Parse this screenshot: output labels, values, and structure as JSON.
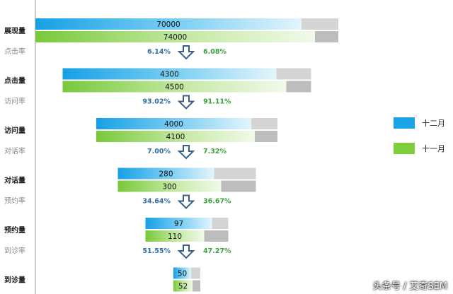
{
  "chart_data": {
    "type": "bar",
    "subtype": "funnel",
    "stages": [
      "展现量",
      "点击量",
      "访问量",
      "对话量",
      "预约量",
      "到诊量"
    ],
    "rate_labels": [
      "点击率",
      "访问率",
      "对话率",
      "预约率",
      "到诊率"
    ],
    "series": [
      {
        "name": "十二月",
        "color": "#1aa3e8",
        "values": [
          70000,
          4300,
          4000,
          280,
          97,
          50
        ],
        "rates": [
          "6.14%",
          "93.02%",
          "7.00%",
          "34.64%",
          "51.55%"
        ]
      },
      {
        "name": "十一月",
        "color": "#7fce3d",
        "values": [
          74000,
          4500,
          4100,
          300,
          110,
          52
        ],
        "rates": [
          "6.08%",
          "91.11%",
          "7.32%",
          "36.67%",
          "47.27%"
        ]
      }
    ],
    "colors": {
      "dec_rate_text": "#2f6fa3",
      "nov_rate_text": "#3aa13a",
      "track": "#d4d4d4",
      "arrow": "#3a5f86"
    },
    "legend_position": "right",
    "grid": false
  },
  "watermark": "头条号 / 艾奇SEM"
}
